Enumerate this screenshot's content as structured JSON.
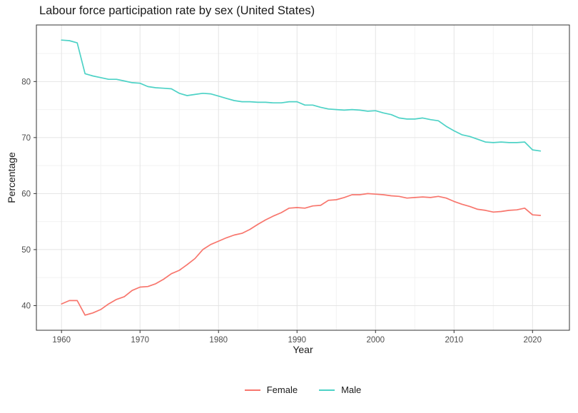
{
  "title": "Labour force participation rate by sex (United States)",
  "chart_data": {
    "type": "line",
    "title": "Labour force participation rate by sex (United States)",
    "xlabel": "Year",
    "ylabel": "Percentage",
    "xlim": [
      1956.8,
      2024.7
    ],
    "ylim": [
      35.6,
      90.1
    ],
    "x_ticks": [
      1960,
      1970,
      1980,
      1990,
      2000,
      2010,
      2020
    ],
    "x_minor_ticks": [
      1965,
      1975,
      1985,
      1995,
      2005,
      2015
    ],
    "y_ticks": [
      40,
      50,
      60,
      70,
      80
    ],
    "y_minor_ticks": [
      45,
      55,
      65,
      75,
      85
    ],
    "grid": true,
    "legend_position": "bottom",
    "x": [
      1960,
      1961,
      1962,
      1963,
      1964,
      1965,
      1966,
      1967,
      1968,
      1969,
      1970,
      1971,
      1972,
      1973,
      1974,
      1975,
      1976,
      1977,
      1978,
      1979,
      1980,
      1981,
      1982,
      1983,
      1984,
      1985,
      1986,
      1987,
      1988,
      1989,
      1990,
      1991,
      1992,
      1993,
      1994,
      1995,
      1996,
      1997,
      1998,
      1999,
      2000,
      2001,
      2002,
      2003,
      2004,
      2005,
      2006,
      2007,
      2008,
      2009,
      2010,
      2011,
      2012,
      2013,
      2014,
      2015,
      2016,
      2017,
      2018,
      2019,
      2020,
      2021
    ],
    "series": [
      {
        "name": "Female",
        "color": "#F8766D",
        "values": [
          40.3,
          40.9,
          40.9,
          38.3,
          38.7,
          39.3,
          40.3,
          41.1,
          41.6,
          42.7,
          43.3,
          43.4,
          43.9,
          44.7,
          45.7,
          46.3,
          47.3,
          48.4,
          50.0,
          50.9,
          51.5,
          52.1,
          52.6,
          52.9,
          53.6,
          54.5,
          55.3,
          56.0,
          56.6,
          57.4,
          57.5,
          57.4,
          57.8,
          57.9,
          58.8,
          58.9,
          59.3,
          59.8,
          59.8,
          60.0,
          59.9,
          59.8,
          59.6,
          59.5,
          59.2,
          59.3,
          59.4,
          59.3,
          59.5,
          59.2,
          58.6,
          58.1,
          57.7,
          57.2,
          57.0,
          56.7,
          56.8,
          57.0,
          57.1,
          57.4,
          56.2,
          56.1
        ]
      },
      {
        "name": "Male",
        "color": "#4DD2C6",
        "values": [
          87.4,
          87.3,
          86.9,
          81.4,
          81.0,
          80.7,
          80.4,
          80.4,
          80.1,
          79.8,
          79.7,
          79.1,
          78.9,
          78.8,
          78.7,
          77.9,
          77.5,
          77.7,
          77.9,
          77.8,
          77.4,
          77.0,
          76.6,
          76.4,
          76.4,
          76.3,
          76.3,
          76.2,
          76.2,
          76.4,
          76.4,
          75.8,
          75.8,
          75.4,
          75.1,
          75.0,
          74.9,
          75.0,
          74.9,
          74.7,
          74.8,
          74.4,
          74.1,
          73.5,
          73.3,
          73.3,
          73.5,
          73.2,
          73.0,
          72.0,
          71.2,
          70.5,
          70.2,
          69.7,
          69.2,
          69.1,
          69.2,
          69.1,
          69.1,
          69.2,
          67.8,
          67.6
        ]
      }
    ]
  },
  "legend": {
    "items": [
      {
        "label": "Female",
        "color": "#F8766D"
      },
      {
        "label": "Male",
        "color": "#4DD2C6"
      }
    ]
  },
  "style_colors": {
    "major_grid": "#e4e4e4",
    "minor_grid": "#f2f2f2",
    "panel_border": "#333333",
    "tick_mark": "#333333",
    "tick_text": "#4d4d4d"
  }
}
